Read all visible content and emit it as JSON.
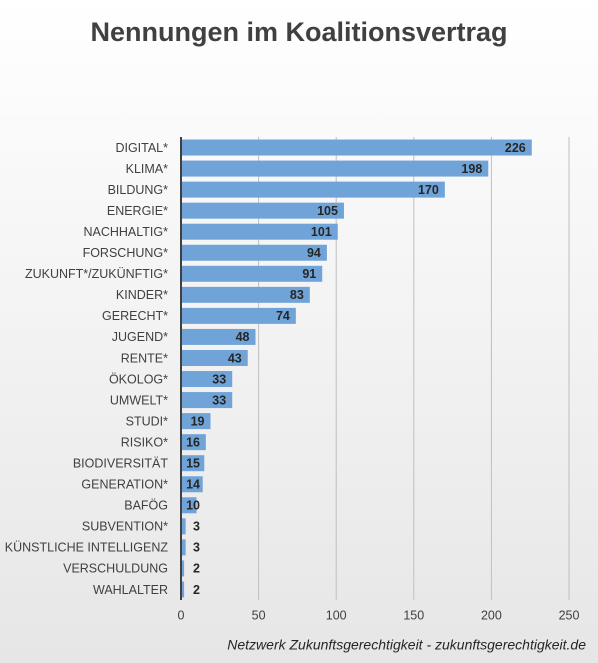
{
  "chart_data": {
    "type": "bar",
    "orientation": "horizontal",
    "title": "Nennungen im Koalitionsvertrag",
    "source": "Netzwerk Zukunftsgerechtigkeit - zukunftsgerechtigkeit.de",
    "categories": [
      "DIGITAL*",
      "KLIMA*",
      "BILDUNG*",
      "ENERGIE*",
      "NACHHALTIG*",
      "FORSCHUNG*",
      "ZUKUNFT*/ZUKÜNFTIG*",
      "KINDER*",
      "GERECHT*",
      "JUGEND*",
      "RENTE*",
      "ÖKOLOG*",
      "UMWELT*",
      "STUDI*",
      "RISIKO*",
      "BIODIVERSITÄT",
      "GENERATION*",
      "BAFÖG",
      "SUBVENTION*",
      "KÜNSTLICHE INTELLIGENZ",
      "VERSCHULDUNG",
      "WAHLALTER"
    ],
    "values": [
      226,
      198,
      170,
      105,
      101,
      94,
      91,
      83,
      74,
      48,
      43,
      33,
      33,
      19,
      16,
      15,
      14,
      10,
      3,
      3,
      2,
      2
    ],
    "color": "#70a4d8",
    "xlim": [
      0,
      250
    ],
    "xticks": [
      0,
      50,
      100,
      150,
      200,
      250
    ],
    "grid": true
  }
}
